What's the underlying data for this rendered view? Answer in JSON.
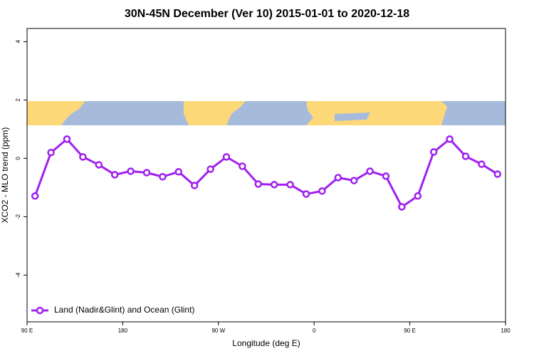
{
  "chart_data": {
    "type": "line",
    "title": "30N-45N December (Ver 10)   2015-01-01 to 2020-12-18",
    "x_label": "Longitude (deg E)",
    "y_label": "XCO2 - MLO trend (ppm)",
    "x": [
      97.5,
      112.5,
      127.5,
      142.5,
      157.5,
      172.5,
      187.5,
      202.5,
      217.5,
      232.5,
      247.5,
      262.5,
      277.5,
      292.5,
      307.5,
      322.5,
      337.5,
      352.5,
      367.5,
      382.5,
      397.5,
      412.5,
      427.5,
      442.5,
      457.5,
      472.5,
      487.5,
      502.5,
      517.5,
      532.5
    ],
    "series": [
      {
        "name": "Land (Nadir&Glint) and Ocean (Glint)",
        "color": "#a020f0",
        "values": [
          -1.29,
          0.2,
          0.66,
          0.05,
          -0.22,
          -0.56,
          -0.44,
          -0.49,
          -0.63,
          -0.46,
          -0.93,
          -0.37,
          0.05,
          -0.27,
          -0.88,
          -0.9,
          -0.9,
          -1.22,
          -1.12,
          -0.66,
          -0.76,
          -0.44,
          -0.61,
          -1.66,
          -1.29,
          0.22,
          0.66,
          0.07,
          -0.2,
          -0.54
        ]
      }
    ],
    "xlim": [
      90,
      540
    ],
    "xticks": [
      {
        "value": 90,
        "label": "90 E"
      },
      {
        "value": 180,
        "label": "180"
      },
      {
        "value": 270,
        "label": "90 W"
      },
      {
        "value": 360,
        "label": "0"
      },
      {
        "value": 450,
        "label": "90 E"
      },
      {
        "value": 540,
        "label": "180"
      }
    ],
    "ylim": [
      -5.6,
      4.45
    ],
    "yticks": [
      -4,
      -2,
      0,
      2,
      4
    ],
    "legend_position": "bottomleft"
  }
}
